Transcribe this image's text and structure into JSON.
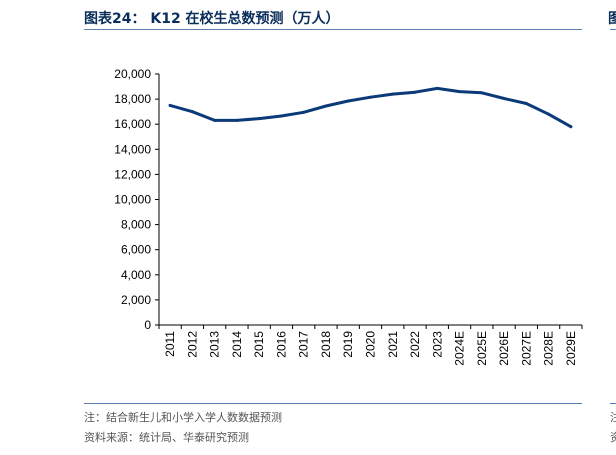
{
  "header": {
    "title": "图表24： K12 在校生总数预测（万人）",
    "right_fragment": "图"
  },
  "footer": {
    "note": "注：结合新生儿和小学入学人数数据预测",
    "source": "资料来源：统计局、华泰研究预测",
    "note_right_fragment": "注",
    "source_right_fragment": "资"
  },
  "colors": {
    "line": "#0a3a78",
    "rule": "#5a7fb0",
    "title": "#0a2d5a"
  },
  "chart_data": {
    "type": "line",
    "title": "",
    "xlabel": "",
    "ylabel": "",
    "ylim": [
      0,
      20000
    ],
    "yticks": [
      0,
      2000,
      4000,
      6000,
      8000,
      10000,
      12000,
      14000,
      16000,
      18000,
      20000
    ],
    "ytick_labels": [
      "0",
      "2,000",
      "4,000",
      "6,000",
      "8,000",
      "10,000",
      "12,000",
      "14,000",
      "16,000",
      "18,000",
      "20,000"
    ],
    "grid": false,
    "legend": "none",
    "categories": [
      "2011",
      "2012",
      "2013",
      "2014",
      "2015",
      "2016",
      "2017",
      "2018",
      "2019",
      "2020",
      "2021",
      "2022",
      "2023",
      "2024E",
      "2025E",
      "2026E",
      "2027E",
      "2028E",
      "2029E"
    ],
    "values": [
      17500,
      17000,
      16300,
      16300,
      16450,
      16650,
      16950,
      17450,
      17850,
      18150,
      18400,
      18550,
      18850,
      18600,
      18500,
      18050,
      17650,
      16800,
      15800
    ]
  }
}
